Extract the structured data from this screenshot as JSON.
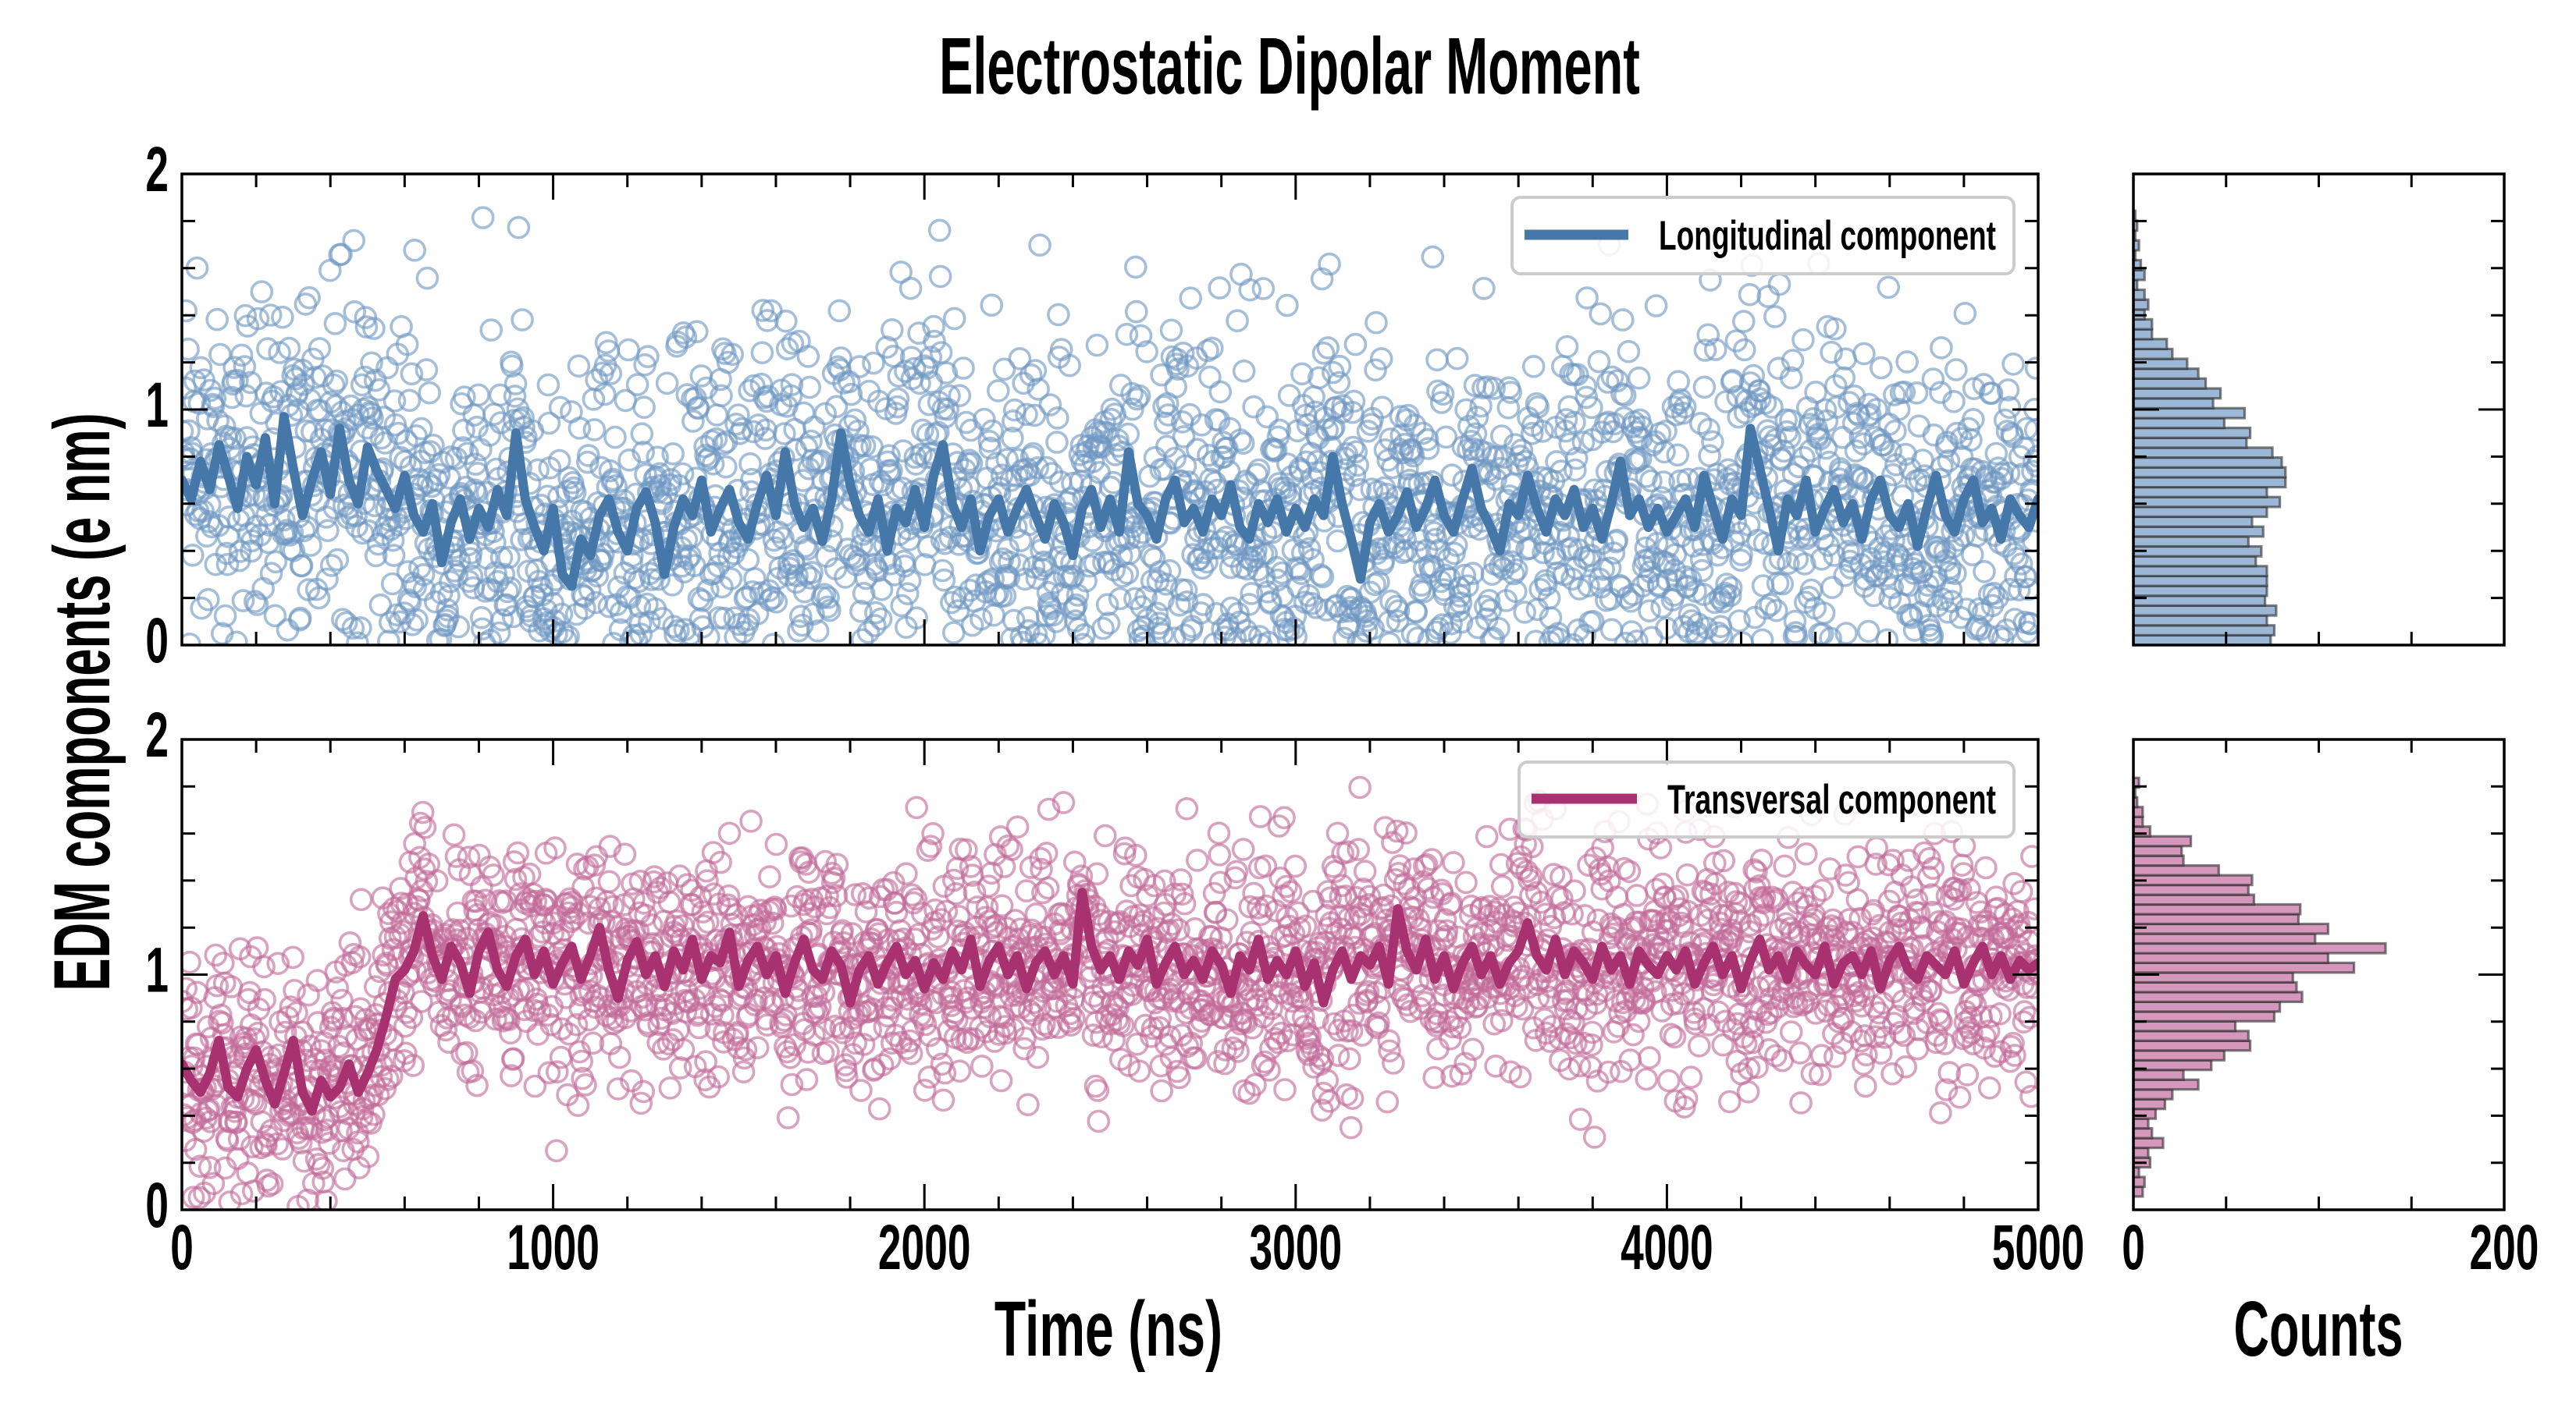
{
  "figure": {
    "title": "Electrostatic Dipolar Moment",
    "ylabel": "EDM components (e nm)",
    "xlabel": "Time (ns)",
    "hist_xlabel": "Counts"
  },
  "colors": {
    "longitudinal_line": "#4577a9",
    "longitudinal_marker": "#6f98c2",
    "longitudinal_hist_fill": "#9db8d6",
    "transversal_line": "#a8316f",
    "transversal_marker": "#c26a9a",
    "transversal_hist_fill": "#d597bc",
    "hist_edge": "#2b2b2b",
    "legend_border": "#cccccc"
  },
  "chart_data": [
    {
      "type": "line",
      "panel": "longitudinal-timeseries",
      "title": "",
      "xlabel": "",
      "ylabel": "EDM components (e nm)",
      "xlim": [
        0,
        5000
      ],
      "ylim": [
        0,
        2
      ],
      "grid": false,
      "xtick_labels": [],
      "ytick_labels": [
        "0",
        "1",
        "2"
      ],
      "legend": {
        "label": "Longitudinal component",
        "placement": "top-right"
      },
      "series": [
        {
          "name": "Longitudinal component",
          "kind": "running_average",
          "x_start": 0,
          "x_step": 25,
          "values": [
            0.7,
            0.62,
            0.78,
            0.66,
            0.85,
            0.72,
            0.58,
            0.8,
            0.68,
            0.88,
            0.6,
            0.97,
            0.75,
            0.55,
            0.7,
            0.82,
            0.64,
            0.92,
            0.7,
            0.6,
            0.84,
            0.74,
            0.66,
            0.58,
            0.72,
            0.55,
            0.48,
            0.6,
            0.35,
            0.52,
            0.62,
            0.45,
            0.58,
            0.5,
            0.66,
            0.55,
            0.9,
            0.62,
            0.5,
            0.4,
            0.58,
            0.3,
            0.25,
            0.45,
            0.38,
            0.55,
            0.62,
            0.48,
            0.4,
            0.58,
            0.65,
            0.52,
            0.3,
            0.5,
            0.62,
            0.55,
            0.7,
            0.48,
            0.58,
            0.66,
            0.52,
            0.45,
            0.6,
            0.72,
            0.55,
            0.82,
            0.6,
            0.5,
            0.58,
            0.44,
            0.62,
            0.9,
            0.68,
            0.55,
            0.48,
            0.62,
            0.4,
            0.58,
            0.52,
            0.66,
            0.5,
            0.72,
            0.85,
            0.6,
            0.5,
            0.62,
            0.4,
            0.55,
            0.62,
            0.48,
            0.58,
            0.66,
            0.55,
            0.45,
            0.6,
            0.52,
            0.38,
            0.58,
            0.66,
            0.5,
            0.62,
            0.48,
            0.82,
            0.6,
            0.55,
            0.45,
            0.62,
            0.7,
            0.52,
            0.58,
            0.48,
            0.62,
            0.55,
            0.68,
            0.5,
            0.45,
            0.6,
            0.52,
            0.62,
            0.48,
            0.58,
            0.5,
            0.62,
            0.55,
            0.8,
            0.6,
            0.45,
            0.28,
            0.52,
            0.6,
            0.48,
            0.55,
            0.65,
            0.5,
            0.58,
            0.7,
            0.55,
            0.48,
            0.62,
            0.75,
            0.58,
            0.5,
            0.4,
            0.6,
            0.55,
            0.72,
            0.58,
            0.48,
            0.62,
            0.55,
            0.66,
            0.5,
            0.58,
            0.45,
            0.6,
            0.78,
            0.55,
            0.62,
            0.5,
            0.58,
            0.48,
            0.55,
            0.62,
            0.5,
            0.72,
            0.58,
            0.45,
            0.62,
            0.55,
            0.92,
            0.75,
            0.58,
            0.4,
            0.62,
            0.55,
            0.7,
            0.48,
            0.58,
            0.66,
            0.52,
            0.6,
            0.45,
            0.62,
            0.7,
            0.55,
            0.5,
            0.6,
            0.42,
            0.58,
            0.72,
            0.55,
            0.48,
            0.62,
            0.7,
            0.52,
            0.58,
            0.45,
            0.62,
            0.55,
            0.5,
            0.62
          ]
        },
        {
          "name": "Longitudinal component (samples)",
          "kind": "scatter_open_circles",
          "n_points": 2500,
          "spread_sd": 0.38,
          "y_range": [
            0,
            1.82
          ]
        }
      ]
    },
    {
      "type": "line",
      "panel": "transversal-timeseries",
      "title": "",
      "xlabel": "Time (ns)",
      "ylabel": "EDM components (e nm)",
      "xlim": [
        0,
        5000
      ],
      "ylim": [
        0,
        2
      ],
      "grid": false,
      "xtick_labels": [
        "0",
        "1000",
        "2000",
        "3000",
        "4000",
        "5000"
      ],
      "ytick_labels": [
        "0",
        "1",
        "2"
      ],
      "legend": {
        "label": "Transversal component",
        "placement": "top-right"
      },
      "series": [
        {
          "name": "Transversal component",
          "kind": "running_average",
          "x_start": 0,
          "x_step": 25,
          "values": [
            0.62,
            0.55,
            0.5,
            0.58,
            0.72,
            0.52,
            0.48,
            0.6,
            0.68,
            0.55,
            0.45,
            0.58,
            0.72,
            0.5,
            0.42,
            0.55,
            0.48,
            0.52,
            0.62,
            0.5,
            0.58,
            0.68,
            0.82,
            0.98,
            1.02,
            1.1,
            1.25,
            1.08,
            0.98,
            1.12,
            1.05,
            0.92,
            1.1,
            1.18,
            1.02,
            0.95,
            1.08,
            1.15,
            1.0,
            1.1,
            0.96,
            1.05,
            1.12,
            0.98,
            1.08,
            1.2,
            1.02,
            0.9,
            1.06,
            1.14,
            1.0,
            1.08,
            0.95,
            1.1,
            1.02,
            1.15,
            0.98,
            1.08,
            1.05,
            1.18,
            0.95,
            1.06,
            1.12,
            1.0,
            1.08,
            0.92,
            1.05,
            1.15,
            1.02,
            0.98,
            1.1,
            1.04,
            0.88,
            1.02,
            1.08,
            0.96,
            1.05,
            1.12,
            1.0,
            1.06,
            0.94,
            1.05,
            0.98,
            1.1,
            1.02,
            1.15,
            0.95,
            1.06,
            1.12,
            1.0,
            1.08,
            0.94,
            1.05,
            1.1,
            1.0,
            1.08,
            0.96,
            1.35,
            1.12,
            1.02,
            1.08,
            0.98,
            1.1,
            1.04,
            1.15,
            0.96,
            1.05,
            1.12,
            1.0,
            1.06,
            0.98,
            1.1,
            1.04,
            0.92,
            1.08,
            1.02,
            1.15,
            0.98,
            1.06,
            1.0,
            1.1,
            0.95,
            1.05,
            0.88,
            1.02,
            1.1,
            0.98,
            1.08,
            1.04,
            1.12,
            0.96,
            1.28,
            1.1,
            1.02,
            1.15,
            0.98,
            1.08,
            0.94,
            1.05,
            1.12,
            1.0,
            1.08,
            0.96,
            1.05,
            1.1,
            1.22,
            1.08,
            1.02,
            1.15,
            1.0,
            1.1,
            1.05,
            0.98,
            1.12,
            1.02,
            1.08,
            0.96,
            1.1,
            1.04,
            1.0,
            1.08,
            1.02,
            1.1,
            0.96,
            1.05,
            1.12,
            1.0,
            1.08,
            0.94,
            1.06,
            1.15,
            1.02,
            1.08,
            0.98,
            1.1,
            1.04,
            1.0,
            1.12,
            0.96,
            1.05,
            1.08,
            1.0,
            1.1,
            0.94,
            1.06,
            1.12,
            1.02,
            0.98,
            1.08,
            1.04,
            1.0,
            1.1,
            0.96,
            1.05,
            1.12,
            1.0,
            1.08,
            0.98,
            1.06,
            1.02,
            1.05
          ]
        },
        {
          "name": "Transversal component (samples)",
          "kind": "scatter_open_circles",
          "n_points": 2500,
          "spread_sd": 0.24,
          "y_range": [
            0,
            1.82
          ]
        }
      ]
    },
    {
      "type": "bar",
      "orientation": "horizontal",
      "panel": "longitudinal-histogram",
      "xlabel": "",
      "ylabel": "",
      "xlim": [
        0,
        200
      ],
      "ylim": [
        0,
        2
      ],
      "xtick_labels": [],
      "bin_start": 0.0,
      "bin_width": 0.0419,
      "counts": [
        74,
        76,
        72,
        77,
        71,
        72,
        72,
        72,
        66,
        69,
        62,
        70,
        64,
        72,
        79,
        72,
        82,
        82,
        80,
        75,
        61,
        63,
        49,
        60,
        43,
        47,
        39,
        35,
        29,
        21,
        18,
        10,
        10,
        6,
        8,
        6,
        2,
        6,
        4,
        1,
        3,
        1,
        2,
        1
      ]
    },
    {
      "type": "bar",
      "orientation": "horizontal",
      "panel": "transversal-histogram",
      "xlabel": "Counts",
      "ylabel": "",
      "xlim": [
        0,
        200
      ],
      "ylim": [
        0,
        2
      ],
      "xtick_labels": [
        "0",
        "200"
      ],
      "bin_start": 0.0564,
      "bin_width": 0.0414,
      "counts": [
        5,
        6,
        3,
        9,
        8,
        16,
        10,
        8,
        12,
        17,
        21,
        35,
        27,
        42,
        49,
        63,
        62,
        55,
        76,
        79,
        91,
        88,
        86,
        119,
        105,
        136,
        98,
        105,
        89,
        90,
        65,
        62,
        64,
        46,
        27,
        26,
        31,
        9,
        5,
        5,
        2,
        1,
        3
      ]
    }
  ]
}
